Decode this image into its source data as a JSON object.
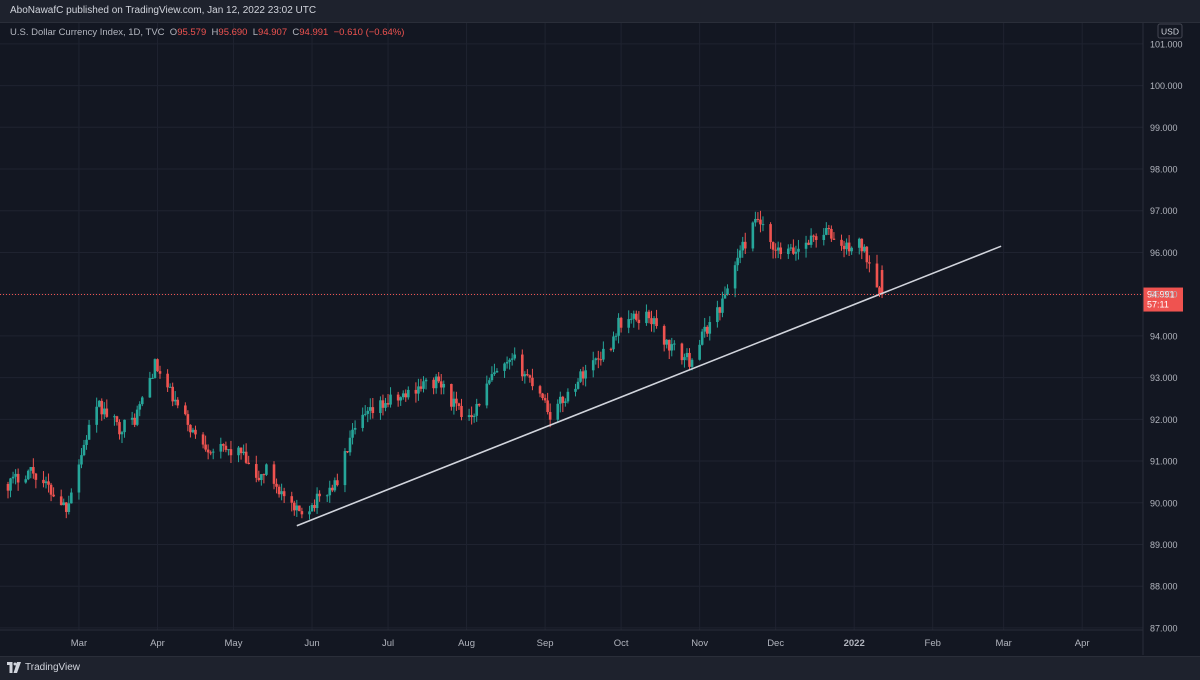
{
  "header": {
    "published_text": "AboNawafC published on TradingView.com, Jan 12, 2022 23:02 UTC"
  },
  "legend": {
    "symbol": "U.S. Dollar Currency Index, 1D, TVC",
    "open_label": "O",
    "open": "95.579",
    "high_label": "H",
    "high": "95.690",
    "low_label": "L",
    "low": "94.907",
    "close_label": "C",
    "close": "94.991",
    "change": "−0.610 (−0.64%)"
  },
  "price_axis": {
    "currency": "USD",
    "last_price": "94.991",
    "countdown": "57:11"
  },
  "footer": {
    "brand": "TradingView",
    "brand_icon": "tradingview-logo-icon"
  },
  "colors": {
    "up": "#26a69a",
    "down": "#ef5350",
    "background": "#131722",
    "trendline": "#d1d4dc"
  },
  "chart_data": {
    "type": "candlestick",
    "symbol": "U.S. Dollar Currency Index",
    "interval": "1D",
    "ylim": [
      86.95,
      101.5
    ],
    "y_ticks": [
      "87.000",
      "88.000",
      "89.000",
      "90.000",
      "91.000",
      "92.000",
      "93.000",
      "94.000",
      "95.000",
      "96.000",
      "97.000",
      "98.000",
      "99.000",
      "100.000",
      "101.000"
    ],
    "x_ticks": [
      {
        "label": "Mar",
        "date": "2021-03-01"
      },
      {
        "label": "Apr",
        "date": "2021-04-01"
      },
      {
        "label": "May",
        "date": "2021-05-01"
      },
      {
        "label": "Jun",
        "date": "2021-06-01"
      },
      {
        "label": "Jul",
        "date": "2021-07-01"
      },
      {
        "label": "Aug",
        "date": "2021-08-01"
      },
      {
        "label": "Sep",
        "date": "2021-09-01"
      },
      {
        "label": "Oct",
        "date": "2021-10-01"
      },
      {
        "label": "Nov",
        "date": "2021-11-01"
      },
      {
        "label": "Dec",
        "date": "2021-12-01"
      },
      {
        "label": "2022",
        "date": "2022-01-01"
      },
      {
        "label": "Feb",
        "date": "2022-02-01"
      },
      {
        "label": "Mar",
        "date": "2022-03-01"
      },
      {
        "label": "Apr",
        "date": "2022-04-01"
      }
    ],
    "last_price": 94.991,
    "grid": true,
    "price_path": [
      [
        "2021-02-01",
        90.45
      ],
      [
        "2021-02-10",
        90.8
      ],
      [
        "2021-02-24",
        89.9
      ],
      [
        "2021-03-05",
        91.8
      ],
      [
        "2021-03-09",
        92.3
      ],
      [
        "2021-03-17",
        91.8
      ],
      [
        "2021-03-23",
        92.0
      ],
      [
        "2021-03-31",
        93.3
      ],
      [
        "2021-04-08",
        92.4
      ],
      [
        "2021-04-16",
        91.6
      ],
      [
        "2021-04-22",
        91.3
      ],
      [
        "2021-05-04",
        91.2
      ],
      [
        "2021-05-10",
        90.5
      ],
      [
        "2021-05-14",
        90.8
      ],
      [
        "2021-05-25",
        89.75
      ],
      [
        "2021-06-01",
        89.95
      ],
      [
        "2021-06-11",
        90.5
      ],
      [
        "2021-06-16",
        91.5
      ],
      [
        "2021-06-21",
        92.0
      ],
      [
        "2021-06-30",
        92.4
      ],
      [
        "2021-07-06",
        92.5
      ],
      [
        "2021-07-13",
        92.8
      ],
      [
        "2021-07-21",
        92.9
      ],
      [
        "2021-07-30",
        92.1
      ],
      [
        "2021-08-04",
        92.2
      ],
      [
        "2021-08-11",
        93.0
      ],
      [
        "2021-08-20",
        93.4
      ],
      [
        "2021-08-31",
        92.6
      ],
      [
        "2021-09-03",
        92.1
      ],
      [
        "2021-09-10",
        92.6
      ],
      [
        "2021-09-17",
        93.2
      ],
      [
        "2021-09-27",
        93.8
      ],
      [
        "2021-09-30",
        94.3
      ],
      [
        "2021-10-12",
        94.5
      ],
      [
        "2021-10-19",
        93.8
      ],
      [
        "2021-10-28",
        93.4
      ],
      [
        "2021-11-04",
        94.2
      ],
      [
        "2021-11-10",
        94.8
      ],
      [
        "2021-11-16",
        95.9
      ],
      [
        "2021-11-24",
        96.8
      ],
      [
        "2021-11-30",
        96.0
      ],
      [
        "2021-12-08",
        96.0
      ],
      [
        "2021-12-14",
        96.3
      ],
      [
        "2021-12-21",
        96.5
      ],
      [
        "2021-12-28",
        96.1
      ],
      [
        "2022-01-03",
        96.2
      ],
      [
        "2022-01-07",
        95.8
      ],
      [
        "2022-01-12",
        94.991
      ]
    ],
    "trendline": {
      "start": [
        "2021-05-26",
        89.45
      ],
      "end": [
        "2022-02-28",
        96.15
      ]
    }
  }
}
